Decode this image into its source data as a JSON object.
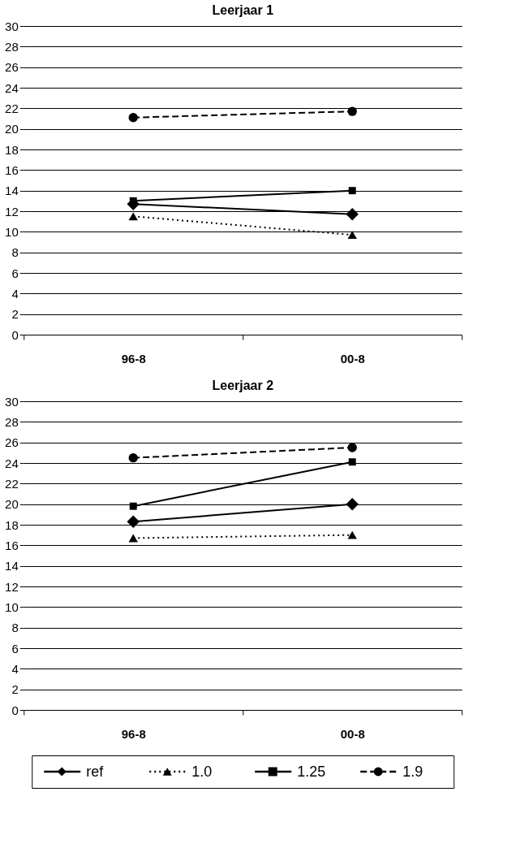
{
  "chart_data": [
    {
      "type": "line",
      "title": "Leerjaar 1",
      "categories": [
        "96-8",
        "00-8"
      ],
      "ylim": [
        0,
        30
      ],
      "yticks": [
        0,
        2,
        4,
        6,
        8,
        10,
        12,
        14,
        16,
        18,
        20,
        22,
        24,
        26,
        28,
        30
      ],
      "grid": "y",
      "series": [
        {
          "color": "#000000",
          "marker": "diamond",
          "line_style": "solid",
          "values": [
            12.7,
            11.7
          ]
        },
        {
          "color": "#000000",
          "marker": "triangle",
          "line_style": "dotted",
          "values": [
            11.5,
            9.7
          ]
        },
        {
          "color": "#000000",
          "marker": "square",
          "line_style": "solid",
          "values": [
            13.0,
            14.0
          ]
        },
        {
          "color": "#000000",
          "marker": "circle",
          "line_style": "dashed",
          "values": [
            21.1,
            21.7
          ]
        }
      ]
    },
    {
      "type": "line",
      "title": "Leerjaar 2",
      "categories": [
        "96-8",
        "00-8"
      ],
      "ylim": [
        0,
        30
      ],
      "yticks": [
        0,
        2,
        4,
        6,
        8,
        10,
        12,
        14,
        16,
        18,
        20,
        22,
        24,
        26,
        28,
        30
      ],
      "grid": "y",
      "legend": "bottom",
      "series": [
        {
          "name": "ref",
          "color": "#000000",
          "marker": "diamond",
          "line_style": "solid",
          "values": [
            18.3,
            20.0
          ]
        },
        {
          "name": "1.0",
          "color": "#000000",
          "marker": "triangle",
          "line_style": "dotted",
          "values": [
            16.7,
            17.0
          ]
        },
        {
          "name": "1.25",
          "color": "#000000",
          "marker": "square",
          "line_style": "solid",
          "values": [
            19.8,
            24.1
          ]
        },
        {
          "name": "1.9",
          "color": "#000000",
          "marker": "circle",
          "line_style": "dashed",
          "values": [
            24.5,
            25.5
          ]
        }
      ]
    }
  ]
}
